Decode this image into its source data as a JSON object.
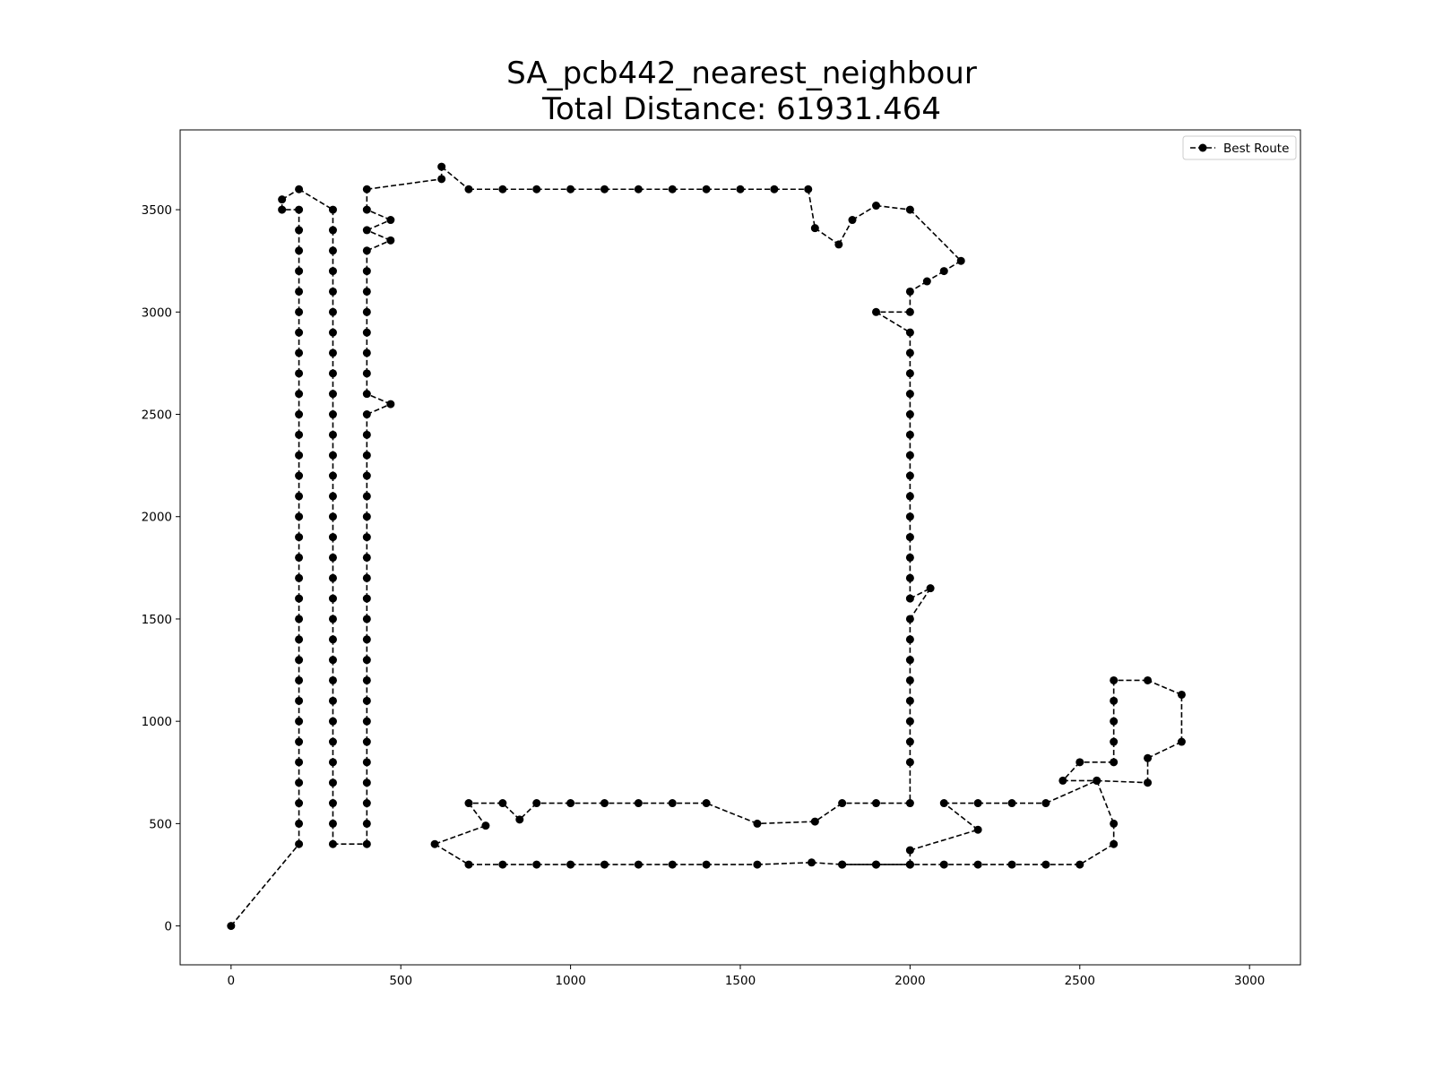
{
  "chart_data": {
    "type": "line",
    "title": "SA_pcb442_nearest_neighbour",
    "subtitle": "Total Distance: 61931.464",
    "xlabel": "",
    "ylabel": "",
    "xlim": [
      -150,
      3150
    ],
    "ylim": [
      -190,
      3890
    ],
    "x_ticks": [
      0,
      500,
      1000,
      1500,
      2000,
      2500,
      3000
    ],
    "y_ticks": [
      0,
      500,
      1000,
      1500,
      2000,
      2500,
      3000,
      3500
    ],
    "grid": false,
    "legend": {
      "position": "top-right",
      "entries": [
        "Best Route"
      ]
    },
    "series": [
      {
        "name": "Best Route",
        "color": "#000000",
        "line_style": "dashed",
        "marker": "circle",
        "points": [
          [
            0,
            0
          ],
          [
            200,
            400
          ],
          [
            200,
            500
          ],
          [
            200,
            600
          ],
          [
            200,
            700
          ],
          [
            200,
            800
          ],
          [
            200,
            900
          ],
          [
            200,
            1000
          ],
          [
            200,
            1100
          ],
          [
            200,
            1200
          ],
          [
            200,
            1300
          ],
          [
            200,
            1400
          ],
          [
            200,
            1500
          ],
          [
            200,
            1600
          ],
          [
            200,
            1700
          ],
          [
            200,
            1800
          ],
          [
            200,
            1900
          ],
          [
            200,
            2000
          ],
          [
            200,
            2100
          ],
          [
            200,
            2200
          ],
          [
            200,
            2300
          ],
          [
            200,
            2400
          ],
          [
            200,
            2500
          ],
          [
            200,
            2600
          ],
          [
            200,
            2700
          ],
          [
            200,
            2800
          ],
          [
            200,
            2900
          ],
          [
            200,
            3000
          ],
          [
            200,
            3100
          ],
          [
            200,
            3200
          ],
          [
            200,
            3300
          ],
          [
            200,
            3400
          ],
          [
            200,
            3500
          ],
          [
            150,
            3500
          ],
          [
            150,
            3550
          ],
          [
            200,
            3600
          ],
          [
            300,
            3500
          ],
          [
            300,
            3400
          ],
          [
            300,
            3300
          ],
          [
            300,
            3200
          ],
          [
            300,
            3100
          ],
          [
            300,
            3000
          ],
          [
            300,
            2900
          ],
          [
            300,
            2800
          ],
          [
            300,
            2700
          ],
          [
            300,
            2600
          ],
          [
            300,
            2500
          ],
          [
            300,
            2400
          ],
          [
            300,
            2300
          ],
          [
            300,
            2200
          ],
          [
            300,
            2100
          ],
          [
            300,
            2000
          ],
          [
            300,
            1900
          ],
          [
            300,
            1800
          ],
          [
            300,
            1700
          ],
          [
            300,
            1600
          ],
          [
            300,
            1500
          ],
          [
            300,
            1400
          ],
          [
            300,
            1300
          ],
          [
            300,
            1200
          ],
          [
            300,
            1100
          ],
          [
            300,
            1000
          ],
          [
            300,
            900
          ],
          [
            300,
            800
          ],
          [
            300,
            700
          ],
          [
            300,
            600
          ],
          [
            300,
            500
          ],
          [
            300,
            400
          ],
          [
            400,
            400
          ],
          [
            400,
            500
          ],
          [
            400,
            600
          ],
          [
            400,
            700
          ],
          [
            400,
            800
          ],
          [
            400,
            900
          ],
          [
            400,
            1000
          ],
          [
            400,
            1100
          ],
          [
            400,
            1200
          ],
          [
            400,
            1300
          ],
          [
            400,
            1400
          ],
          [
            400,
            1500
          ],
          [
            400,
            1600
          ],
          [
            400,
            1700
          ],
          [
            400,
            1800
          ],
          [
            400,
            1900
          ],
          [
            400,
            2000
          ],
          [
            400,
            2100
          ],
          [
            400,
            2200
          ],
          [
            400,
            2300
          ],
          [
            400,
            2400
          ],
          [
            400,
            2500
          ],
          [
            470,
            2550
          ],
          [
            400,
            2600
          ],
          [
            400,
            2700
          ],
          [
            400,
            2800
          ],
          [
            400,
            2900
          ],
          [
            400,
            3000
          ],
          [
            400,
            3100
          ],
          [
            400,
            3200
          ],
          [
            400,
            3300
          ],
          [
            470,
            3350
          ],
          [
            400,
            3400
          ],
          [
            470,
            3450
          ],
          [
            400,
            3500
          ],
          [
            400,
            3600
          ],
          [
            620,
            3650
          ],
          [
            620,
            3710
          ],
          [
            700,
            3600
          ],
          [
            800,
            3600
          ],
          [
            900,
            3600
          ],
          [
            1000,
            3600
          ],
          [
            1100,
            3600
          ],
          [
            1200,
            3600
          ],
          [
            1300,
            3600
          ],
          [
            1400,
            3600
          ],
          [
            1500,
            3600
          ],
          [
            1600,
            3600
          ],
          [
            1700,
            3600
          ],
          [
            1720,
            3410
          ],
          [
            1790,
            3330
          ],
          [
            1830,
            3450
          ],
          [
            1900,
            3520
          ],
          [
            2000,
            3500
          ],
          [
            2150,
            3250
          ],
          [
            2100,
            3200
          ],
          [
            2050,
            3150
          ],
          [
            2000,
            3100
          ],
          [
            2000,
            3000
          ],
          [
            1900,
            3000
          ],
          [
            2000,
            2900
          ],
          [
            2000,
            2800
          ],
          [
            2000,
            2700
          ],
          [
            2000,
            2600
          ],
          [
            2000,
            2500
          ],
          [
            2000,
            2400
          ],
          [
            2000,
            2300
          ],
          [
            2000,
            2200
          ],
          [
            2000,
            2100
          ],
          [
            2000,
            2000
          ],
          [
            2000,
            1900
          ],
          [
            2000,
            1800
          ],
          [
            2000,
            1700
          ],
          [
            2000,
            1600
          ],
          [
            2060,
            1650
          ],
          [
            2000,
            1500
          ],
          [
            2000,
            1400
          ],
          [
            2000,
            1300
          ],
          [
            2000,
            1200
          ],
          [
            2000,
            1100
          ],
          [
            2000,
            1000
          ],
          [
            2000,
            900
          ],
          [
            2000,
            800
          ],
          [
            2000,
            600
          ],
          [
            1900,
            600
          ],
          [
            1800,
            600
          ],
          [
            1720,
            510
          ],
          [
            1550,
            500
          ],
          [
            1400,
            600
          ],
          [
            1300,
            600
          ],
          [
            1200,
            600
          ],
          [
            1100,
            600
          ],
          [
            1000,
            600
          ],
          [
            900,
            600
          ],
          [
            850,
            520
          ],
          [
            800,
            600
          ],
          [
            700,
            600
          ],
          [
            750,
            490
          ],
          [
            600,
            400
          ],
          [
            700,
            300
          ],
          [
            800,
            300
          ],
          [
            900,
            300
          ],
          [
            1000,
            300
          ],
          [
            1100,
            300
          ],
          [
            1200,
            300
          ],
          [
            1300,
            300
          ],
          [
            1400,
            300
          ],
          [
            1550,
            300
          ],
          [
            1710,
            310
          ],
          [
            1800,
            300
          ],
          [
            1900,
            300
          ],
          [
            2000,
            300
          ],
          [
            2000,
            370
          ],
          [
            2200,
            470
          ],
          [
            2100,
            600
          ],
          [
            2200,
            600
          ],
          [
            2300,
            600
          ],
          [
            2400,
            600
          ],
          [
            2550,
            710
          ],
          [
            2700,
            700
          ],
          [
            2700,
            820
          ],
          [
            2800,
            900
          ],
          [
            2800,
            1130
          ],
          [
            2700,
            1200
          ],
          [
            2600,
            1200
          ],
          [
            2600,
            1100
          ],
          [
            2600,
            1000
          ],
          [
            2600,
            900
          ],
          [
            2600,
            800
          ],
          [
            2500,
            800
          ],
          [
            2450,
            710
          ],
          [
            2550,
            710
          ],
          [
            2600,
            500
          ],
          [
            2600,
            400
          ],
          [
            2500,
            300
          ],
          [
            2400,
            300
          ],
          [
            2300,
            300
          ],
          [
            2200,
            300
          ],
          [
            2100,
            300
          ],
          [
            2000,
            300
          ],
          [
            1900,
            300
          ],
          [
            1800,
            300
          ]
        ]
      }
    ]
  }
}
